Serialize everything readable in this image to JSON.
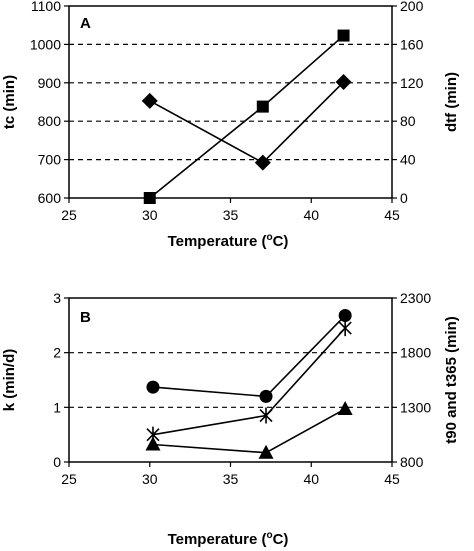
{
  "chart_data": [
    {
      "type": "line",
      "panel_label": "A",
      "xlabel": "Temperature (",
      "xlabel_sup": "o",
      "xlabel_end": "C)",
      "ylabel_left": "tc (min)",
      "ylabel_right": "dtf (min)",
      "xlim": [
        25,
        45
      ],
      "xticks": [
        "25",
        "30",
        "35",
        "40",
        "45"
      ],
      "ylim_left": [
        600,
        1100
      ],
      "yticks_left": [
        "600",
        "700",
        "800",
        "900",
        "1000",
        "1100"
      ],
      "ylim_right": [
        0,
        200
      ],
      "yticks_right": [
        "0",
        "40",
        "80",
        "120",
        "160",
        "200"
      ],
      "dashed_gridlines_left": [
        700,
        800,
        900,
        1000
      ],
      "series": [
        {
          "marker": "square",
          "axis": "left",
          "x": [
            30,
            37,
            42
          ],
          "y": [
            600,
            838,
            1023
          ]
        },
        {
          "marker": "diamond",
          "axis": "left",
          "x": [
            30,
            37,
            42
          ],
          "y": [
            853,
            692,
            902
          ]
        }
      ]
    },
    {
      "type": "line",
      "panel_label": "B",
      "xlabel": "Temperature (",
      "xlabel_sup": "o",
      "xlabel_end": "C)",
      "ylabel_left": "k (min/d)",
      "ylabel_right": "t90 and t365 (min)",
      "xlim": [
        25,
        45
      ],
      "xticks": [
        "25",
        "30",
        "35",
        "40",
        "45"
      ],
      "ylim_left": [
        0,
        3
      ],
      "yticks_left": [
        "0",
        "1",
        "2",
        "3"
      ],
      "ylim_right": [
        800,
        2300
      ],
      "yticks_right": [
        "800",
        "1300",
        "1800",
        "2300"
      ],
      "dashed_gridlines_left": [
        1,
        2
      ],
      "series": [
        {
          "marker": "circle",
          "axis": "left",
          "x": [
            30.2,
            37.2,
            42.1
          ],
          "y": [
            1.37,
            1.2,
            2.68
          ]
        },
        {
          "marker": "star",
          "axis": "left",
          "x": [
            30.2,
            37.2,
            42.1
          ],
          "y": [
            0.5,
            0.85,
            2.45
          ]
        },
        {
          "marker": "triangle",
          "axis": "left",
          "x": [
            30.2,
            37.2,
            42.1
          ],
          "y": [
            0.32,
            0.17,
            0.97
          ]
        }
      ]
    }
  ]
}
